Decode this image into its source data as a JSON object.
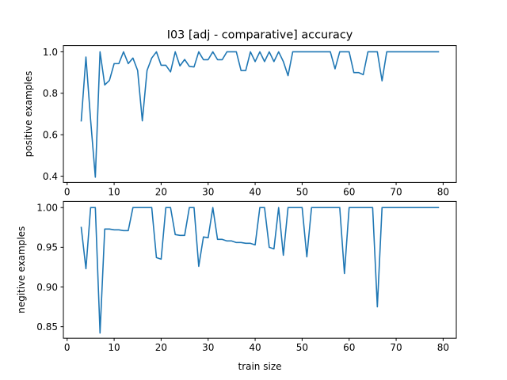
{
  "chart_data": [
    {
      "type": "line",
      "title": "I03 [adj - comparative] accuracy",
      "xlabel": "",
      "ylabel": "positive examples",
      "xlim": [
        -0.8,
        82.8
      ],
      "ylim": [
        0.37,
        1.03
      ],
      "xticks": [
        0,
        10,
        20,
        30,
        40,
        50,
        60,
        70,
        80
      ],
      "yticks": [
        0.4,
        0.6,
        0.8,
        1.0
      ],
      "ytick_labels": [
        "0.4",
        "0.6",
        "0.8",
        "1.0"
      ],
      "color": "#1f77b4",
      "grid": false,
      "x": [
        3,
        4,
        5,
        6,
        7,
        8,
        9,
        10,
        11,
        12,
        13,
        14,
        15,
        16,
        17,
        18,
        19,
        20,
        21,
        22,
        23,
        24,
        25,
        26,
        27,
        28,
        29,
        30,
        31,
        32,
        33,
        34,
        35,
        36,
        37,
        38,
        39,
        40,
        41,
        42,
        43,
        44,
        45,
        46,
        47,
        48,
        49,
        50,
        51,
        52,
        53,
        54,
        55,
        56,
        57,
        58,
        59,
        60,
        61,
        62,
        63,
        64,
        65,
        66,
        67,
        68,
        69,
        70,
        71,
        72,
        73,
        74,
        75,
        76,
        77,
        78,
        79
      ],
      "y": [
        0.667,
        0.975,
        0.67,
        0.395,
        1.0,
        0.84,
        0.862,
        0.943,
        0.943,
        1.0,
        0.943,
        0.97,
        0.91,
        0.667,
        0.91,
        0.97,
        1.0,
        0.935,
        0.935,
        0.903,
        1.0,
        0.932,
        0.963,
        0.93,
        0.927,
        1.0,
        0.962,
        0.962,
        1.0,
        0.962,
        0.962,
        1.0,
        1.0,
        1.0,
        0.91,
        0.91,
        1.0,
        0.953,
        1.0,
        0.953,
        1.0,
        0.953,
        1.0,
        0.953,
        0.885,
        1.0,
        1.0,
        1.0,
        1.0,
        1.0,
        1.0,
        1.0,
        1.0,
        1.0,
        0.918,
        1.0,
        1.0,
        1.0,
        0.9,
        0.9,
        0.89,
        1.0,
        1.0,
        1.0,
        0.86,
        1.0,
        1.0,
        1.0,
        1.0,
        1.0,
        1.0,
        1.0,
        1.0,
        1.0,
        1.0,
        1.0,
        1.0
      ]
    },
    {
      "type": "line",
      "title": "",
      "xlabel": "train size",
      "ylabel": "negitive examples",
      "xlim": [
        -0.8,
        82.8
      ],
      "ylim": [
        0.8355,
        1.0078
      ],
      "xticks": [
        0,
        10,
        20,
        30,
        40,
        50,
        60,
        70,
        80
      ],
      "yticks": [
        0.85,
        0.9,
        0.95,
        1.0
      ],
      "ytick_labels": [
        "0.85",
        "0.90",
        "0.95",
        "1.00"
      ],
      "color": "#1f77b4",
      "grid": false,
      "x": [
        3,
        4,
        5,
        6,
        7,
        8,
        9,
        10,
        11,
        12,
        13,
        14,
        15,
        16,
        17,
        18,
        19,
        20,
        21,
        22,
        23,
        24,
        25,
        26,
        27,
        28,
        29,
        30,
        31,
        32,
        33,
        34,
        35,
        36,
        37,
        38,
        39,
        40,
        41,
        42,
        43,
        44,
        45,
        46,
        47,
        48,
        49,
        50,
        51,
        52,
        53,
        54,
        55,
        56,
        57,
        58,
        59,
        60,
        61,
        62,
        63,
        64,
        65,
        66,
        67,
        68,
        69,
        70,
        71,
        72,
        73,
        74,
        75,
        76,
        77,
        78,
        79
      ],
      "y": [
        0.975,
        0.923,
        1.0,
        1.0,
        0.842,
        0.973,
        0.973,
        0.972,
        0.972,
        0.971,
        0.971,
        1.0,
        1.0,
        1.0,
        1.0,
        1.0,
        0.937,
        0.935,
        1.0,
        1.0,
        0.966,
        0.965,
        0.965,
        1.0,
        1.0,
        0.926,
        0.963,
        0.962,
        1.0,
        0.96,
        0.96,
        0.958,
        0.958,
        0.956,
        0.956,
        0.955,
        0.955,
        0.953,
        1.0,
        1.0,
        0.95,
        0.948,
        1.0,
        0.94,
        1.0,
        1.0,
        1.0,
        1.0,
        0.938,
        1.0,
        1.0,
        1.0,
        1.0,
        1.0,
        1.0,
        1.0,
        0.917,
        1.0,
        1.0,
        1.0,
        1.0,
        1.0,
        1.0,
        0.875,
        1.0,
        1.0,
        1.0,
        1.0,
        1.0,
        1.0,
        1.0,
        1.0,
        1.0,
        1.0,
        1.0,
        1.0,
        1.0
      ]
    }
  ]
}
